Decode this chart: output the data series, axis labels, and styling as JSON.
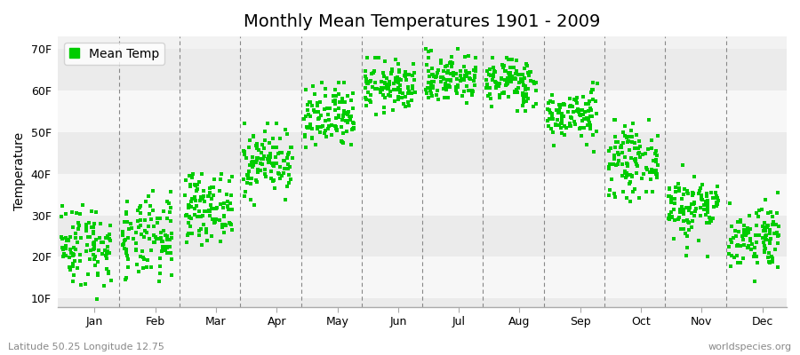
{
  "title": "Monthly Mean Temperatures 1901 - 2009",
  "ylabel": "Temperature",
  "bottom_left_label": "Latitude 50.25 Longitude 12.75",
  "bottom_right_label": "worldspecies.org",
  "legend_label": "Mean Temp",
  "dot_color": "#00cc00",
  "background_color": "#f2f2f2",
  "stripe_colors": [
    "#ebebeb",
    "#f7f7f7"
  ],
  "ytick_labels": [
    "10F",
    "20F",
    "30F",
    "40F",
    "50F",
    "60F",
    "70F"
  ],
  "ytick_values": [
    10,
    20,
    30,
    40,
    50,
    60,
    70
  ],
  "ylim": [
    8,
    73
  ],
  "months": [
    "Jan",
    "Feb",
    "Mar",
    "Apr",
    "May",
    "Jun",
    "Jul",
    "Aug",
    "Sep",
    "Oct",
    "Nov",
    "Dec"
  ],
  "n_years": 109,
  "month_means": [
    23,
    24,
    32,
    43,
    53,
    61,
    63,
    62,
    54,
    43,
    32,
    25
  ],
  "month_stds": [
    5,
    5,
    4,
    4,
    4,
    3,
    3,
    3,
    3,
    4,
    4,
    4
  ],
  "month_mins": [
    9,
    10,
    20,
    30,
    42,
    52,
    54,
    54,
    44,
    30,
    20,
    14
  ],
  "month_maxs": [
    36,
    38,
    40,
    52,
    62,
    68,
    70,
    68,
    62,
    53,
    42,
    36
  ],
  "title_fontsize": 14,
  "axis_fontsize": 10,
  "tick_fontsize": 9,
  "label_fontsize": 8,
  "dpi": 100,
  "figsize": [
    9.0,
    4.0
  ]
}
